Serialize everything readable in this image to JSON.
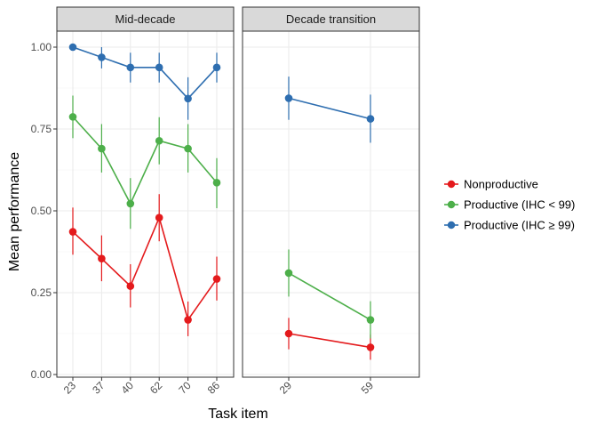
{
  "chart_data": {
    "type": "line",
    "xlabel": "Task item",
    "ylabel": "Mean performance",
    "ylim": [
      0,
      1.04
    ],
    "y_ticks": [
      "0.00",
      "0.25",
      "0.50",
      "0.75",
      "1.00"
    ],
    "grid": true,
    "legend_position": "right",
    "panels": [
      {
        "title": "Mid-decade",
        "categories": [
          "23",
          "37",
          "40",
          "62",
          "70",
          "86"
        ],
        "series": [
          {
            "name": "Nonproductive",
            "color": "#e41a1c",
            "values": [
              0.436,
              0.354,
              0.27,
              0.479,
              0.167,
              0.292
            ],
            "lower": [
              0.366,
              0.285,
              0.205,
              0.407,
              0.117,
              0.226
            ],
            "upper": [
              0.51,
              0.425,
              0.337,
              0.551,
              0.223,
              0.36
            ]
          },
          {
            "name": "Productive (IHC < 99)",
            "color": "#4daf4a",
            "values": [
              0.787,
              0.69,
              0.522,
              0.714,
              0.69,
              0.586
            ],
            "lower": [
              0.722,
              0.617,
              0.445,
              0.642,
              0.617,
              0.508
            ],
            "upper": [
              0.852,
              0.765,
              0.6,
              0.786,
              0.765,
              0.661
            ]
          },
          {
            "name": "Productive (IHC ≥ 99)",
            "color": "#2e6eb0",
            "values": [
              1.0,
              0.969,
              0.938,
              0.938,
              0.843,
              0.938
            ],
            "lower": [
              1.0,
              0.935,
              0.892,
              0.892,
              0.778,
              0.892
            ],
            "upper": [
              1.0,
              1.0,
              0.983,
              0.983,
              0.908,
              0.983
            ]
          }
        ]
      },
      {
        "title": "Decade transition",
        "categories": [
          "29",
          "59"
        ],
        "series": [
          {
            "name": "Nonproductive",
            "color": "#e41a1c",
            "values": [
              0.125,
              0.083
            ],
            "lower": [
              0.077,
              0.045
            ],
            "upper": [
              0.173,
              0.122
            ]
          },
          {
            "name": "Productive (IHC < 99)",
            "color": "#4daf4a",
            "values": [
              0.31,
              0.167
            ],
            "lower": [
              0.238,
              0.11
            ],
            "upper": [
              0.382,
              0.224
            ]
          },
          {
            "name": "Productive (IHC ≥ 99)",
            "color": "#2e6eb0",
            "values": [
              0.844,
              0.781
            ],
            "lower": [
              0.778,
              0.708
            ],
            "upper": [
              0.91,
              0.855
            ]
          }
        ]
      }
    ],
    "legend": [
      {
        "label": "Nonproductive",
        "color": "#e41a1c"
      },
      {
        "label": "Productive (IHC < 99)",
        "color": "#4daf4a"
      },
      {
        "label": "Productive (IHC ≥ 99)",
        "color": "#2e6eb0"
      }
    ]
  }
}
